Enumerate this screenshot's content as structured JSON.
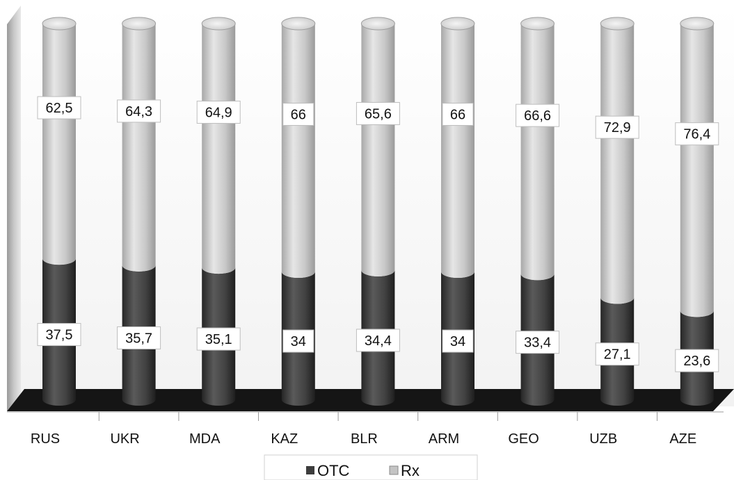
{
  "chart_data": {
    "type": "bar",
    "stacked": true,
    "style": "3d-cylinder",
    "categories": [
      "RUS",
      "UKR",
      "MDA",
      "KAZ",
      "BLR",
      "ARM",
      "GEO",
      "UZB",
      "AZE"
    ],
    "series": [
      {
        "name": "OTC",
        "values": [
          37.5,
          35.7,
          35.1,
          34,
          34.4,
          34,
          33.4,
          27.1,
          23.6
        ],
        "labels": [
          "37,5",
          "35,7",
          "35,1",
          "34",
          "34,4",
          "34",
          "33,4",
          "27,1",
          "23,6"
        ],
        "color": "#3d3d3d"
      },
      {
        "name": "Rx",
        "values": [
          62.5,
          64.3,
          64.9,
          66,
          65.6,
          66,
          66.6,
          72.9,
          76.4
        ],
        "labels": [
          "62,5",
          "64,3",
          "64,9",
          "66",
          "65,6",
          "66",
          "66,6",
          "72,9",
          "76,4"
        ],
        "color": "#c4c4c4"
      }
    ],
    "ylim": [
      0,
      100
    ],
    "grid": false,
    "legend_position": "bottom"
  },
  "colors": {
    "wall": "#d9d9d9",
    "floor": "#111111",
    "otc": "#3d3d3d",
    "rx": "#c4c4c4"
  }
}
